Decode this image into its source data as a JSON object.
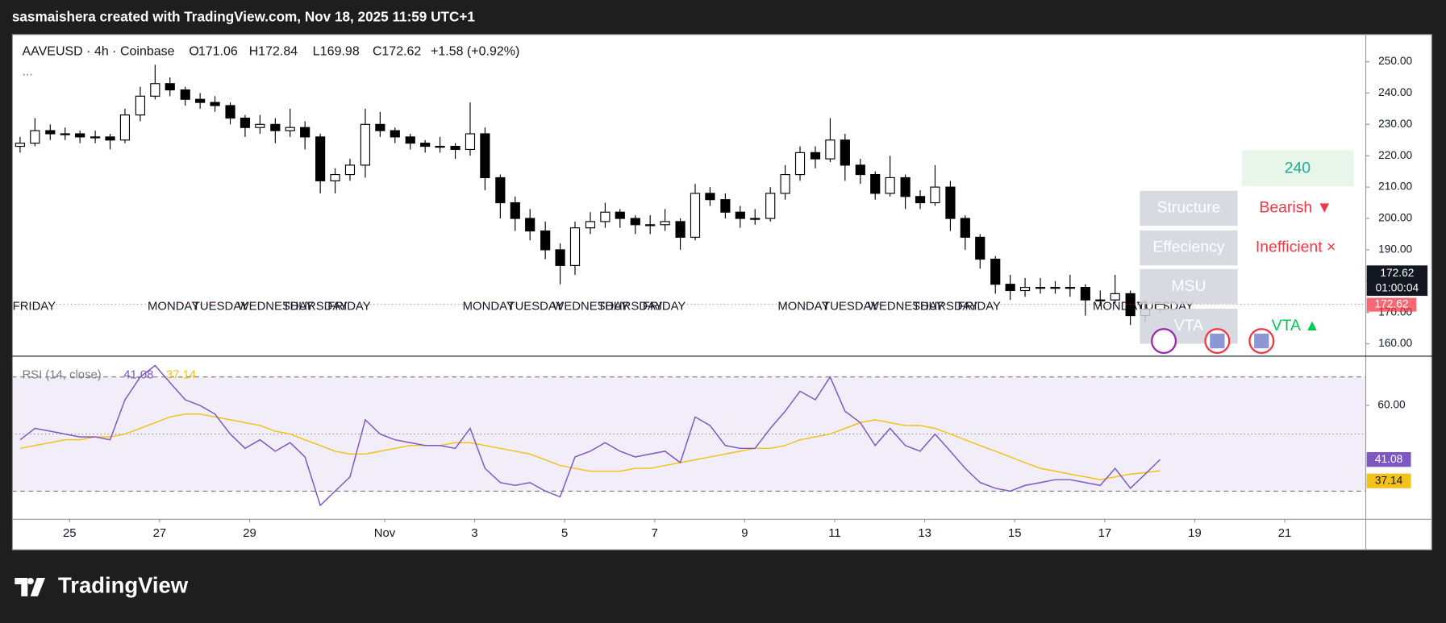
{
  "header": {
    "title": "sasmaishera created with TradingView.com, Nov 18, 2025 11:59 UTC+1"
  },
  "chart_data": {
    "type": "candlestick",
    "legend": {
      "symbol": "AAVEUSD · 4h · Coinbase",
      "ohlc": [
        {
          "key": "O",
          "value": 171.06
        },
        {
          "key": "H",
          "value": 172.84
        },
        {
          "key": "L",
          "value": 169.98
        },
        {
          "key": "C",
          "value": 172.62
        }
      ],
      "change": "+1.58 (+0.92%)",
      "more": "..."
    },
    "x": [
      -7.1,
      -6.77,
      -6.43,
      -6.1,
      -5.77,
      -5.43,
      -5.1,
      -4.77,
      -4.43,
      -4.1,
      -3.77,
      -3.43,
      -3.1,
      -2.77,
      -2.43,
      -2.1,
      -1.77,
      -1.43,
      -1.1,
      -0.77,
      -0.43,
      -0.1,
      0.23,
      0.57,
      0.9,
      1.23,
      1.57,
      1.9,
      2.23,
      2.57,
      2.9,
      3.23,
      3.57,
      3.9,
      4.23,
      4.57,
      4.9,
      5.23,
      5.57,
      5.9,
      6.23,
      6.57,
      6.9,
      7.23,
      7.57,
      7.9,
      8.23,
      8.57,
      8.9,
      9.23,
      9.57,
      9.9,
      10.23,
      10.57,
      10.9,
      11.23,
      11.57,
      11.9,
      12.23,
      12.57,
      12.9,
      13.23,
      13.57,
      13.9,
      14.23,
      14.57,
      14.9,
      15.23,
      15.57,
      15.9,
      16.23,
      16.57,
      16.9,
      17.23,
      17.57,
      17.9,
      18.23
    ],
    "open": [
      223,
      224,
      228,
      227,
      227,
      226,
      226,
      225,
      233,
      239,
      243,
      241,
      238,
      237,
      236,
      232,
      229,
      230,
      228,
      229,
      226,
      212,
      214,
      217,
      230,
      228,
      226,
      224,
      223,
      223,
      222,
      227,
      213,
      205,
      200,
      196,
      190,
      185,
      197,
      199,
      202,
      200,
      198,
      198,
      199,
      194,
      208,
      206,
      202,
      200,
      200,
      208,
      214,
      221,
      219,
      225,
      217,
      214,
      208,
      213,
      207,
      205,
      210,
      200,
      194,
      187,
      179,
      177,
      178,
      178,
      178,
      178,
      174,
      174,
      176,
      169,
      171.06
    ],
    "high": [
      226,
      232,
      230,
      229,
      228,
      228,
      227,
      235,
      242,
      249,
      245,
      242,
      240,
      239,
      237,
      233,
      233,
      232,
      235,
      231,
      227,
      216,
      219,
      235,
      234,
      229,
      227,
      225,
      226,
      224,
      237,
      229,
      214,
      207,
      203,
      199,
      192,
      199,
      202,
      205,
      203,
      201,
      201,
      203,
      200,
      211,
      210,
      208,
      204,
      203,
      210,
      217,
      223,
      223,
      232,
      227,
      219,
      215,
      220,
      214,
      209,
      217,
      212,
      201,
      195,
      188,
      182,
      181,
      181,
      180,
      182,
      179,
      177,
      182,
      177,
      174,
      172.84
    ],
    "low": [
      221,
      223,
      225,
      225,
      224,
      224,
      222,
      224,
      231,
      238,
      239,
      236,
      235,
      234,
      230,
      226,
      227,
      224,
      226,
      222,
      208,
      208,
      212,
      213,
      226,
      224,
      222,
      221,
      221,
      219,
      220,
      209,
      200,
      196,
      193,
      187,
      179,
      182,
      195,
      197,
      197,
      195,
      195,
      196,
      190,
      193,
      204,
      200,
      197,
      198,
      199,
      206,
      212,
      216,
      218,
      212,
      211,
      206,
      207,
      203,
      203,
      204,
      196,
      190,
      184,
      176,
      174,
      175,
      176,
      176,
      175,
      169,
      172,
      173,
      166,
      167,
      169.98
    ],
    "close": [
      224,
      228,
      227,
      227,
      226,
      226,
      225,
      233,
      239,
      243,
      241,
      238,
      237,
      236,
      232,
      229,
      230,
      228,
      229,
      226,
      212,
      214,
      217,
      230,
      228,
      226,
      224,
      223,
      223,
      222,
      227,
      213,
      205,
      200,
      196,
      190,
      185,
      197,
      199,
      202,
      200,
      198,
      198,
      199,
      194,
      208,
      206,
      202,
      200,
      200,
      208,
      214,
      221,
      219,
      225,
      217,
      214,
      208,
      213,
      207,
      205,
      210,
      200,
      194,
      187,
      179,
      177,
      178,
      178,
      178,
      178,
      174,
      174,
      176,
      169,
      171.06,
      172.62
    ],
    "up_color": "#ffffff",
    "down_color": "#000000",
    "wick_color": "#000000",
    "xlim": [
      -7.28,
      22.8
    ],
    "xticks": [
      {
        "value": -6,
        "label": "25"
      },
      {
        "value": -4,
        "label": "27"
      },
      {
        "value": -2,
        "label": "29"
      },
      {
        "value": 1,
        "label": "Nov"
      },
      3,
      5,
      7,
      9,
      11,
      13,
      15,
      17,
      19,
      21
    ],
    "ylim": [
      156.2,
      258.8
    ],
    "yticks": [
      {
        "value": 160,
        "label": "160.00"
      },
      {
        "value": 170,
        "label": "170.00"
      },
      {
        "value": 180,
        "label": "180.00"
      },
      {
        "value": 190,
        "label": "190.00"
      },
      {
        "value": 200,
        "label": "200.00"
      },
      {
        "value": 210,
        "label": "210.00"
      },
      {
        "value": 220,
        "label": "220.00"
      },
      {
        "value": 230,
        "label": "230.00"
      },
      {
        "value": 240,
        "label": "240.00"
      },
      {
        "value": 250,
        "label": "250.00"
      }
    ],
    "countdown": "01:00:04",
    "price_color": "#f23645",
    "session_labels": [
      {
        "x": -7,
        "text": "FRIDAY"
      },
      {
        "x": -4,
        "text": "MONDAY"
      },
      {
        "x": -3,
        "text": "TUESDAY"
      },
      {
        "x": -2,
        "text": "WEDNESDAY"
      },
      {
        "x": -1,
        "text": "THURSDAY"
      },
      {
        "x": 0,
        "text": "FRIDAY"
      },
      {
        "x": 3,
        "text": "MONDAY"
      },
      {
        "x": 4,
        "text": "TUESDAY"
      },
      {
        "x": 5,
        "text": "WEDNESDAY"
      },
      {
        "x": 6,
        "text": "THURSDAY"
      },
      {
        "x": 7,
        "text": "FRIDAY"
      },
      {
        "x": 10,
        "text": "MONDAY"
      },
      {
        "x": 11,
        "text": "TUESDAY"
      },
      {
        "x": 12,
        "text": "WEDNESDAY"
      },
      {
        "x": 13,
        "text": "THURSDAY"
      },
      {
        "x": 14,
        "text": "FRIDAY"
      },
      {
        "x": 17,
        "text": "MONDAY"
      },
      {
        "x": 18,
        "text": "TUESDAY"
      }
    ],
    "rsi": {
      "title": "RSI (14, close)",
      "color": "#7e57c2",
      "ma_color": "#f2c21b",
      "values": [
        48,
        52,
        51,
        50,
        49,
        49,
        48,
        62,
        70,
        74,
        68,
        62,
        60,
        57,
        50,
        45,
        48,
        44,
        47,
        42,
        25,
        30,
        35,
        55,
        50,
        48,
        47,
        46,
        46,
        45,
        52,
        38,
        33,
        32,
        33,
        30,
        28,
        42,
        44,
        47,
        44,
        42,
        43,
        44,
        40,
        56,
        53,
        46,
        45,
        45,
        52,
        58,
        65,
        62,
        70,
        58,
        54,
        46,
        52,
        46,
        44,
        50,
        44,
        38,
        33,
        31,
        30,
        32,
        33,
        34,
        34,
        33,
        32,
        38,
        31,
        36,
        41.08
      ],
      "ma": [
        45,
        46,
        47,
        48,
        48,
        49,
        49,
        50,
        52,
        54,
        56,
        57,
        57,
        56,
        55,
        54,
        53,
        51,
        50,
        48,
        46,
        44,
        43,
        43,
        44,
        45,
        46,
        46,
        46,
        47,
        47,
        46,
        45,
        44,
        43,
        41,
        39,
        38,
        37,
        37,
        37,
        38,
        38,
        39,
        40,
        41,
        42,
        43,
        44,
        45,
        45,
        46,
        48,
        49,
        50,
        52,
        54,
        55,
        54,
        53,
        53,
        52,
        50,
        48,
        46,
        44,
        42,
        40,
        38,
        37,
        36,
        35,
        34,
        35,
        36,
        36.5,
        37.14
      ],
      "ylim": [
        20.3,
        77.1
      ],
      "yticks": [
        {
          "value": 60,
          "label": "60.00"
        }
      ],
      "levels": [
        70,
        50,
        30
      ]
    }
  },
  "widget": {
    "timeframe": 240,
    "rows": [
      {
        "label": "Structure",
        "value": "Bearish ▼"
      },
      {
        "label": "Effeciency",
        "value": "Inefficient ×"
      },
      {
        "label": "MSU"
      },
      {
        "label": "VTA",
        "value": "VTA ▲"
      }
    ]
  },
  "footer": {
    "logo": "TradingView"
  }
}
